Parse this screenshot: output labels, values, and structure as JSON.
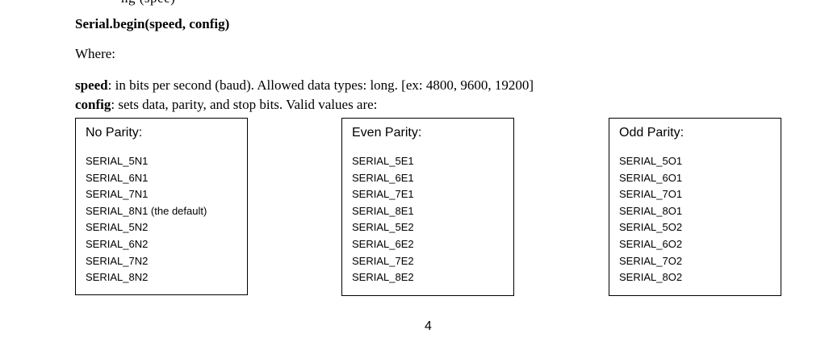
{
  "top_fragment": "ng (spee)",
  "signature": "Serial.begin(speed, config)",
  "where": "Where:",
  "speed": {
    "term": "speed",
    "text": ": in bits per second (baud). Allowed data types: long. [ex: 4800, 9600, 19200]"
  },
  "config": {
    "term": "config",
    "text": ": sets data, parity, and stop bits. Valid values are:"
  },
  "boxes": [
    {
      "title": "No Parity:",
      "items": [
        "SERIAL_5N1",
        "SERIAL_6N1",
        "SERIAL_7N1",
        "SERIAL_8N1 (the default)",
        "SERIAL_5N2",
        "SERIAL_6N2",
        "SERIAL_7N2",
        "SERIAL_8N2"
      ]
    },
    {
      "title": "Even Parity:",
      "items": [
        "SERIAL_5E1",
        "SERIAL_6E1",
        "SERIAL_7E1",
        "SERIAL_8E1",
        "SERIAL_5E2",
        "SERIAL_6E2",
        "SERIAL_7E2",
        "SERIAL_8E2"
      ]
    },
    {
      "title": "Odd Parity:",
      "items": [
        "SERIAL_5O1",
        "SERIAL_6O1",
        "SERIAL_7O1",
        "SERIAL_8O1",
        "SERIAL_5O2",
        "SERIAL_6O2",
        "SERIAL_7O2",
        "SERIAL_8O2"
      ]
    }
  ],
  "page_number": "4"
}
